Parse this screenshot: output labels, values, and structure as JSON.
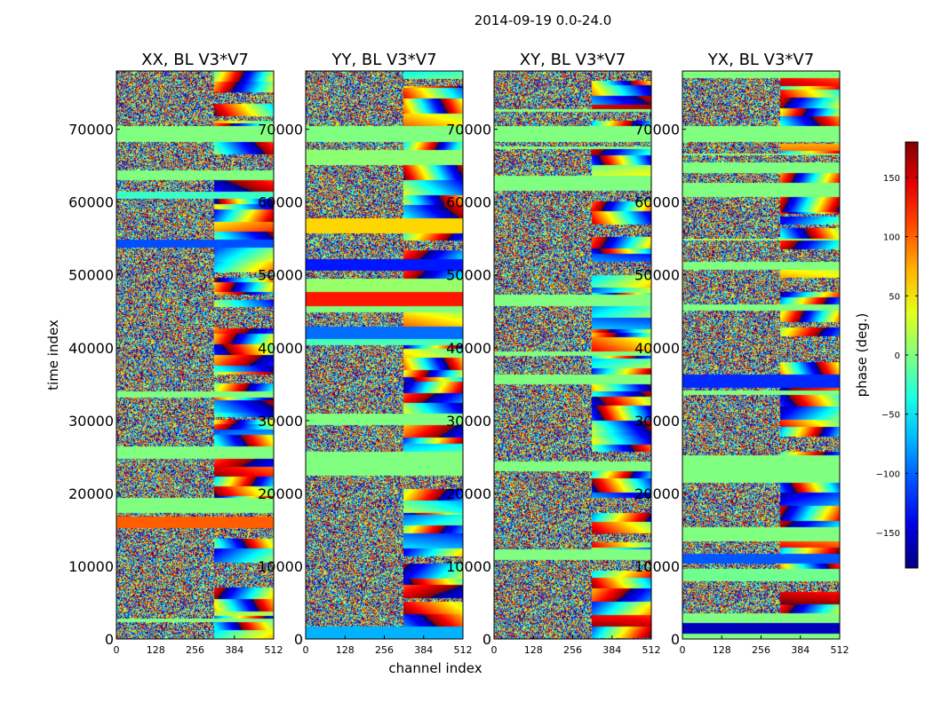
{
  "figure": {
    "suptitle": "2014-09-19 0.0-24.0",
    "xlabel": "channel index",
    "ylabel": "time index",
    "colorbar_label": "phase (deg.)"
  },
  "chart_data": {
    "type": "heatmap",
    "title": "2014-09-19 0.0-24.0",
    "xlabel": "channel index",
    "ylabel": "time index",
    "xlim": [
      0,
      512
    ],
    "ylim": [
      0,
      78000
    ],
    "xticks": [
      0,
      128,
      256,
      384,
      512
    ],
    "yticks": [
      0,
      10000,
      20000,
      30000,
      40000,
      50000,
      60000,
      70000
    ],
    "colorbar": {
      "label": "phase (deg.)",
      "range": [
        -180,
        180
      ],
      "ticks": [
        -150,
        -100,
        -50,
        0,
        50,
        100,
        150
      ],
      "tick_labels": [
        "−150",
        "−100",
        "−50",
        "0",
        "50",
        "100",
        "150"
      ],
      "colormap": "jet"
    },
    "panels": [
      {
        "title": "XX, BL V3*V7"
      },
      {
        "title": "YY, BL V3*V7"
      },
      {
        "title": "XY, BL V3*V7"
      },
      {
        "title": "YX, BL V3*V7"
      }
    ]
  }
}
